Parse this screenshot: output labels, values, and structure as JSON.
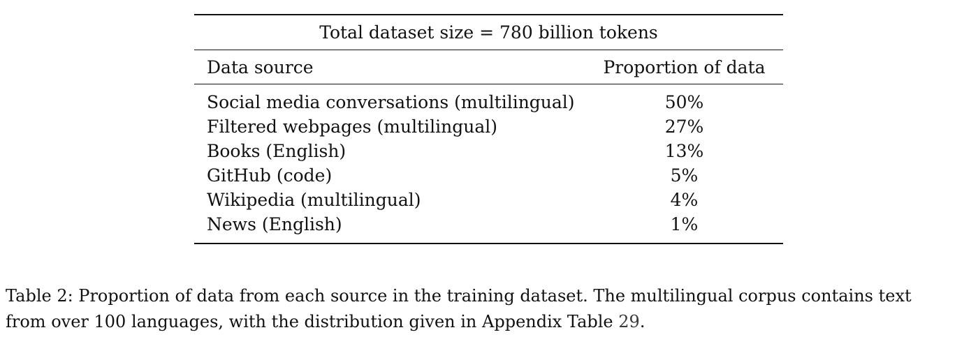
{
  "table": {
    "title": "Total dataset size = 780 billion tokens",
    "headers": {
      "source": "Data source",
      "proportion": "Proportion of data"
    },
    "rows": [
      {
        "source": "Social media conversations (multilingual)",
        "proportion": "50%"
      },
      {
        "source": "Filtered webpages (multilingual)",
        "proportion": "27%"
      },
      {
        "source": "Books (English)",
        "proportion": "13%"
      },
      {
        "source": "GitHub (code)",
        "proportion": "5%"
      },
      {
        "source": "Wikipedia (multilingual)",
        "proportion": "4%"
      },
      {
        "source": "News (English)",
        "proportion": "1%"
      }
    ]
  },
  "caption": {
    "line1": "Table 2: Proportion of data from each source in the training dataset. The multilingual corpus contains text",
    "line2_prefix": "from over 100 languages, with the distribution given in Appendix Table ",
    "line2_ref": "29",
    "line2_suffix": "."
  }
}
